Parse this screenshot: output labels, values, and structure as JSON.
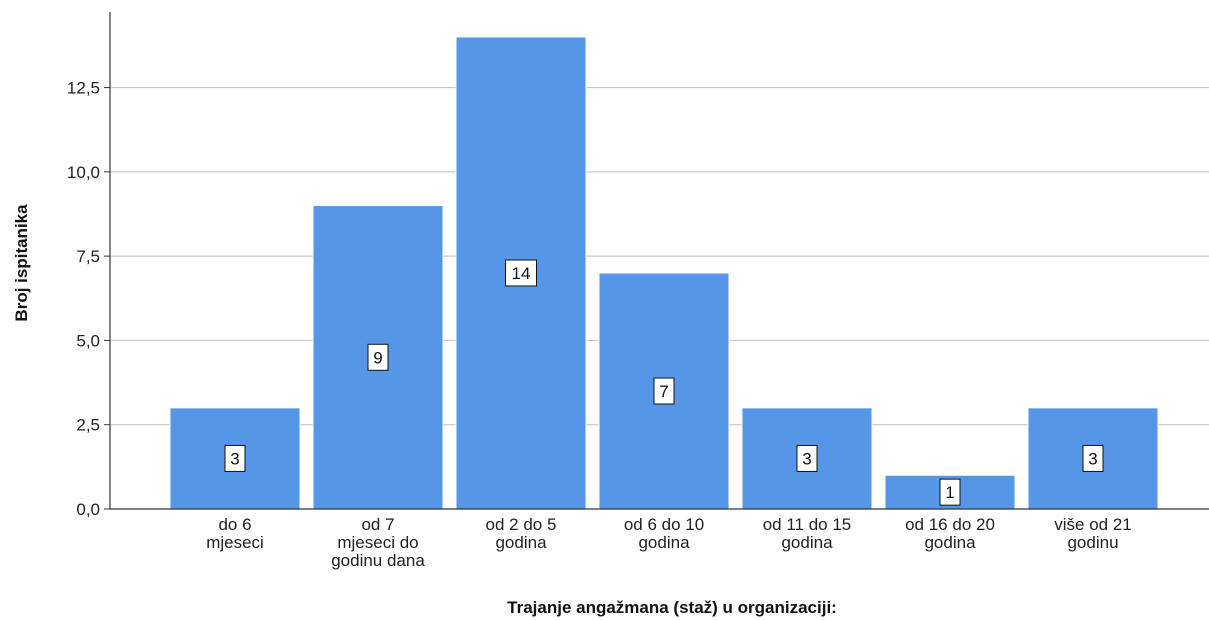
{
  "chart_data": {
    "type": "bar",
    "categories": [
      [
        "do 6",
        "mjeseci"
      ],
      [
        "od 7",
        "mjeseci do",
        "godinu dana"
      ],
      [
        "od 2 do 5",
        "godina"
      ],
      [
        "od 6 do 10",
        "godina"
      ],
      [
        "od 11 do 15",
        "godina"
      ],
      [
        "od 16 do 20",
        "godina"
      ],
      [
        "više od 21",
        "godinu"
      ]
    ],
    "values": [
      3,
      9,
      14,
      7,
      3,
      1,
      3
    ],
    "data_labels": [
      "3",
      "9",
      "14",
      "7",
      "3",
      "1",
      "3"
    ],
    "xlabel": "Trajanje angažmana (staž) u organizaciji:",
    "ylabel": "Broj ispitanika",
    "ylim": [
      0,
      14
    ],
    "yticks": [
      0,
      2.5,
      5,
      7.5,
      10,
      12.5
    ],
    "ytick_labels": [
      "0,0",
      "2,5",
      "5,0",
      "7,5",
      "10,0",
      "12,5"
    ],
    "grid": true,
    "colors": {
      "bar": "#5596e6",
      "bar_edge": "#ffffff",
      "grid": "#c8c8c8",
      "axis": "#333333"
    }
  }
}
